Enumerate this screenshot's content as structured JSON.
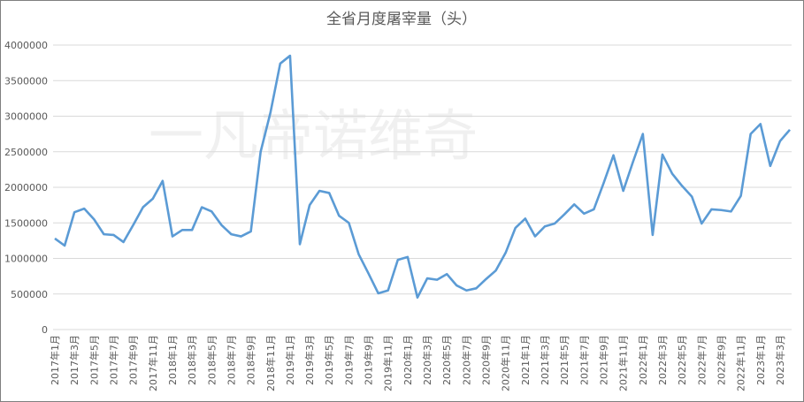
{
  "chart_data": {
    "type": "line",
    "title": "全省月度屠宰量（头）",
    "watermark": "一凡帝诺维奇",
    "categories": [
      "2017年1月",
      null,
      "2017年3月",
      null,
      "2017年5月",
      null,
      "2017年7月",
      null,
      "2017年9月",
      null,
      "2017年11月",
      null,
      "2018年1月",
      null,
      "2018年3月",
      null,
      "2018年5月",
      null,
      "2018年7月",
      null,
      "2018年9月",
      null,
      "2018年11月",
      null,
      "2019年1月",
      null,
      "2019年3月",
      null,
      "2019年5月",
      null,
      "2019年7月",
      null,
      "2019年9月",
      null,
      "2019年11月",
      null,
      "2020年1月",
      null,
      "2020年3月",
      null,
      "2020年5月",
      null,
      "2020年7月",
      null,
      "2020年9月",
      null,
      "2020年11月",
      null,
      "2021年1月",
      null,
      "2021年3月",
      null,
      "2021年5月",
      null,
      "2021年7月",
      null,
      "2021年9月",
      null,
      "2021年11月",
      null,
      "2022年1月",
      null,
      "2022年3月",
      null,
      "2022年5月",
      null,
      "2022年7月",
      null,
      "2022年9月",
      null,
      "2022年11月",
      null,
      "2023年1月",
      null,
      "2023年3月",
      null
    ],
    "series": [
      {
        "color": "#5b9bd5",
        "values": [
          1280000,
          1180000,
          1650000,
          1700000,
          1550000,
          1340000,
          1330000,
          1230000,
          1470000,
          1720000,
          1840000,
          2090000,
          1310000,
          1400000,
          1400000,
          1720000,
          1660000,
          1470000,
          1340000,
          1310000,
          1380000,
          2500000,
          3050000,
          3740000,
          3850000,
          1200000,
          1750000,
          1950000,
          1920000,
          1600000,
          1500000,
          1060000,
          790000,
          510000,
          550000,
          980000,
          1020000,
          450000,
          720000,
          700000,
          780000,
          620000,
          550000,
          580000,
          710000,
          830000,
          1080000,
          1430000,
          1560000,
          1310000,
          1450000,
          1490000,
          1620000,
          1760000,
          1630000,
          1690000,
          2060000,
          2450000,
          1950000,
          2360000,
          2750000,
          1330000,
          2460000,
          2190000,
          2020000,
          1870000,
          1490000,
          1690000,
          1680000,
          1660000,
          1880000,
          2750000,
          2890000,
          2300000,
          2650000,
          2810000
        ]
      }
    ],
    "ylim": [
      0,
      4000000
    ],
    "yticks": [
      0,
      500000,
      1000000,
      1500000,
      2000000,
      2500000,
      3000000,
      3500000,
      4000000
    ],
    "grid": true
  }
}
